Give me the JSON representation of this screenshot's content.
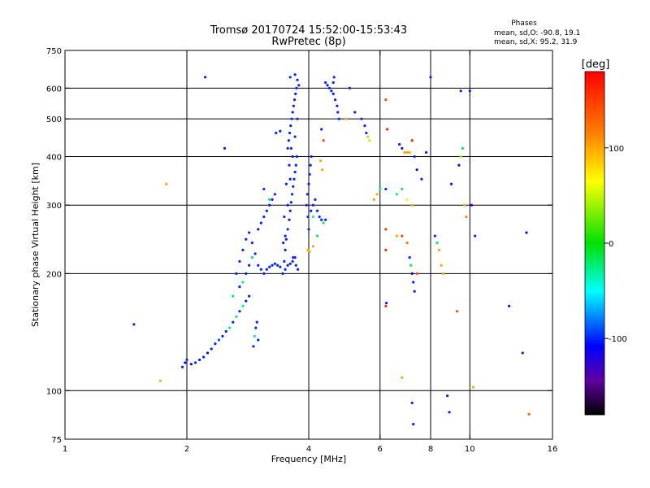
{
  "chart_data": {
    "type": "scatter",
    "title": "Tromsø 20170724 15:52:00-15:53:43",
    "subtitle": "RwPretec (8p)",
    "stats": {
      "heading": "Phases",
      "line1": "mean, sd,O: -90.8, 19.1",
      "line2": "mean, sd,X:  95.2, 31.9"
    },
    "xlabel": "Frequency [MHz]",
    "ylabel": "Stationary phase Virtual Height [km]",
    "x_scale": "log2",
    "y_scale": "log",
    "xlim": [
      1,
      16
    ],
    "ylim": [
      75,
      750
    ],
    "x_ticks": [
      1,
      2,
      4,
      6,
      8,
      10,
      16
    ],
    "y_ticks": [
      75,
      100,
      200,
      300,
      400,
      500,
      600,
      750
    ],
    "x_gridlines": [
      2,
      4,
      6,
      8,
      10
    ],
    "y_gridlines": [
      100,
      200,
      300,
      400,
      500,
      600
    ],
    "grid": true,
    "colorbar": {
      "label": "[deg]",
      "range": [
        -180,
        180
      ],
      "ticks": [
        100,
        0,
        -100
      ]
    },
    "point_size": 1.6,
    "points": [
      [
        1.48,
        148,
        -100
      ],
      [
        1.72,
        106,
        100
      ],
      [
        1.78,
        340,
        100
      ],
      [
        2.22,
        640,
        -100
      ],
      [
        1.95,
        115,
        -100
      ],
      [
        1.98,
        118,
        -110
      ],
      [
        2.0,
        120,
        -100
      ],
      [
        2.05,
        117,
        -120
      ],
      [
        2.1,
        118,
        -100
      ],
      [
        2.15,
        120,
        -105
      ],
      [
        2.2,
        122,
        -100
      ],
      [
        2.25,
        125,
        -110
      ],
      [
        2.3,
        128,
        -100
      ],
      [
        2.35,
        132,
        -100
      ],
      [
        2.4,
        135,
        -90
      ],
      [
        2.45,
        138,
        -100
      ],
      [
        2.5,
        142,
        -100
      ],
      [
        2.55,
        145,
        -30
      ],
      [
        2.6,
        150,
        -100
      ],
      [
        2.65,
        155,
        -20
      ],
      [
        2.7,
        160,
        -100
      ],
      [
        2.75,
        165,
        -30
      ],
      [
        2.8,
        170,
        -100
      ],
      [
        2.85,
        175,
        -100
      ],
      [
        2.6,
        175,
        -20
      ],
      [
        2.7,
        185,
        -100
      ],
      [
        2.75,
        190,
        -30
      ],
      [
        2.8,
        200,
        -100
      ],
      [
        2.85,
        210,
        -100
      ],
      [
        2.9,
        220,
        -20
      ],
      [
        2.65,
        200,
        -100
      ],
      [
        2.7,
        215,
        -100
      ],
      [
        2.75,
        230,
        -100
      ],
      [
        2.8,
        245,
        -100
      ],
      [
        2.85,
        255,
        -100
      ],
      [
        2.9,
        240,
        -100
      ],
      [
        2.95,
        225,
        -100
      ],
      [
        3.0,
        210,
        -100
      ],
      [
        3.05,
        205,
        -100
      ],
      [
        3.1,
        200,
        -100
      ],
      [
        3.15,
        205,
        -100
      ],
      [
        3.2,
        208,
        -100
      ],
      [
        3.25,
        210,
        -100
      ],
      [
        3.3,
        212,
        -100
      ],
      [
        3.35,
        210,
        -100
      ],
      [
        3.4,
        208,
        -100
      ],
      [
        3.0,
        260,
        -110
      ],
      [
        3.05,
        270,
        -100
      ],
      [
        3.1,
        280,
        -100
      ],
      [
        3.15,
        290,
        -100
      ],
      [
        3.2,
        300,
        -100
      ],
      [
        3.25,
        310,
        -100
      ],
      [
        3.3,
        320,
        -100
      ],
      [
        3.1,
        330,
        -100
      ],
      [
        3.2,
        310,
        -20
      ],
      [
        2.92,
        130,
        -100
      ],
      [
        2.94,
        138,
        -30
      ],
      [
        2.96,
        145,
        -100
      ],
      [
        2.98,
        150,
        -100
      ],
      [
        3.0,
        135,
        -100
      ],
      [
        2.48,
        420,
        -100
      ],
      [
        3.32,
        460,
        -100
      ],
      [
        3.4,
        465,
        -100
      ],
      [
        3.45,
        200,
        -100
      ],
      [
        3.48,
        215,
        -100
      ],
      [
        3.5,
        230,
        -100
      ],
      [
        3.52,
        245,
        -100
      ],
      [
        3.55,
        260,
        -100
      ],
      [
        3.58,
        275,
        -100
      ],
      [
        3.6,
        290,
        -100
      ],
      [
        3.62,
        305,
        -100
      ],
      [
        3.64,
        320,
        -100
      ],
      [
        3.66,
        335,
        -100
      ],
      [
        3.68,
        350,
        -100
      ],
      [
        3.7,
        365,
        -100
      ],
      [
        3.72,
        380,
        -100
      ],
      [
        3.74,
        400,
        -100
      ],
      [
        3.55,
        420,
        -100
      ],
      [
        3.57,
        440,
        -100
      ],
      [
        3.59,
        460,
        -100
      ],
      [
        3.61,
        480,
        -100
      ],
      [
        3.63,
        500,
        -100
      ],
      [
        3.65,
        520,
        -100
      ],
      [
        3.67,
        540,
        -100
      ],
      [
        3.69,
        560,
        -100
      ],
      [
        3.71,
        580,
        -100
      ],
      [
        3.73,
        600,
        -100
      ],
      [
        3.6,
        640,
        -100
      ],
      [
        3.7,
        650,
        -100
      ],
      [
        3.75,
        630,
        -100
      ],
      [
        3.78,
        610,
        -100
      ],
      [
        3.5,
        250,
        -100
      ],
      [
        3.55,
        300,
        -100
      ],
      [
        3.6,
        350,
        -100
      ],
      [
        3.65,
        400,
        -100
      ],
      [
        3.7,
        450,
        -100
      ],
      [
        3.75,
        500,
        -100
      ],
      [
        3.62,
        420,
        -100
      ],
      [
        3.58,
        380,
        -100
      ],
      [
        3.52,
        340,
        -100
      ],
      [
        3.48,
        280,
        -100
      ],
      [
        3.46,
        240,
        -100
      ],
      [
        3.66,
        220,
        -100
      ],
      [
        3.72,
        210,
        -100
      ],
      [
        3.76,
        205,
        -100
      ],
      [
        3.5,
        205,
        -100
      ],
      [
        3.55,
        210,
        -100
      ],
      [
        3.6,
        212,
        -100
      ],
      [
        3.65,
        215,
        -100
      ],
      [
        3.7,
        220,
        -100
      ],
      [
        3.95,
        300,
        -100
      ],
      [
        3.97,
        320,
        -100
      ],
      [
        4.0,
        340,
        -100
      ],
      [
        4.02,
        360,
        -100
      ],
      [
        4.04,
        380,
        -100
      ],
      [
        4.06,
        400,
        -100
      ],
      [
        3.98,
        280,
        -100
      ],
      [
        4.05,
        290,
        -100
      ],
      [
        4.1,
        300,
        -100
      ],
      [
        4.15,
        310,
        -100
      ],
      [
        4.2,
        290,
        -100
      ],
      [
        4.25,
        280,
        -100
      ],
      [
        4.3,
        275,
        -100
      ],
      [
        4.35,
        270,
        -20
      ],
      [
        4.4,
        275,
        -100
      ],
      [
        4.1,
        280,
        -30
      ],
      [
        4.0,
        260,
        -100
      ],
      [
        3.98,
        230,
        100
      ],
      [
        4.02,
        228,
        100
      ],
      [
        4.1,
        235,
        100
      ],
      [
        4.2,
        250,
        -20
      ],
      [
        4.4,
        620,
        -100
      ],
      [
        4.45,
        610,
        -100
      ],
      [
        4.5,
        600,
        -100
      ],
      [
        4.55,
        590,
        -100
      ],
      [
        4.6,
        580,
        -100
      ],
      [
        4.65,
        560,
        -100
      ],
      [
        4.7,
        540,
        -100
      ],
      [
        4.72,
        520,
        -100
      ],
      [
        4.75,
        500,
        -100
      ],
      [
        4.6,
        620,
        -100
      ],
      [
        4.62,
        640,
        -100
      ],
      [
        4.3,
        470,
        -100
      ],
      [
        4.35,
        440,
        140
      ],
      [
        4.28,
        390,
        100
      ],
      [
        4.32,
        370,
        100
      ],
      [
        4.95,
        500,
        100
      ],
      [
        5.05,
        600,
        -100
      ],
      [
        5.2,
        520,
        -100
      ],
      [
        5.4,
        500,
        -100
      ],
      [
        5.5,
        480,
        -100
      ],
      [
        5.55,
        460,
        -100
      ],
      [
        5.6,
        450,
        40
      ],
      [
        5.65,
        440,
        50
      ],
      [
        5.8,
        310,
        100
      ],
      [
        5.9,
        320,
        100
      ],
      [
        6.0,
        330,
        -30
      ],
      [
        6.2,
        330,
        -100
      ],
      [
        6.2,
        560,
        140
      ],
      [
        6.25,
        470,
        160
      ],
      [
        6.7,
        430,
        -100
      ],
      [
        6.8,
        420,
        -130
      ],
      [
        6.9,
        410,
        100
      ],
      [
        7.0,
        410,
        100
      ],
      [
        7.1,
        410,
        100
      ],
      [
        7.2,
        440,
        160
      ],
      [
        7.3,
        400,
        -100
      ],
      [
        7.4,
        370,
        -120
      ],
      [
        6.6,
        320,
        -30
      ],
      [
        6.8,
        330,
        -20
      ],
      [
        7.0,
        310,
        60
      ],
      [
        7.2,
        300,
        100
      ],
      [
        7.6,
        350,
        -100
      ],
      [
        7.8,
        410,
        -100
      ],
      [
        6.2,
        260,
        160
      ],
      [
        6.2,
        230,
        160
      ],
      [
        6.6,
        250,
        100
      ],
      [
        6.8,
        250,
        150
      ],
      [
        7.0,
        240,
        120
      ],
      [
        7.1,
        220,
        -100
      ],
      [
        7.15,
        210,
        -20
      ],
      [
        7.2,
        200,
        -110
      ],
      [
        7.25,
        190,
        -100
      ],
      [
        7.3,
        180,
        -100
      ],
      [
        7.4,
        200,
        140
      ],
      [
        6.2,
        165,
        160
      ],
      [
        6.22,
        168,
        -100
      ],
      [
        6.8,
        108,
        100
      ],
      [
        7.2,
        93,
        -100
      ],
      [
        7.25,
        82,
        -100
      ],
      [
        8.0,
        640,
        -100
      ],
      [
        8.2,
        250,
        -100
      ],
      [
        8.3,
        240,
        -20
      ],
      [
        8.4,
        230,
        100
      ],
      [
        8.5,
        210,
        100
      ],
      [
        8.6,
        200,
        100
      ],
      [
        9.0,
        340,
        -100
      ],
      [
        9.4,
        380,
        -110
      ],
      [
        9.5,
        400,
        40
      ],
      [
        9.6,
        420,
        -20
      ],
      [
        9.7,
        300,
        100
      ],
      [
        9.8,
        280,
        110
      ],
      [
        9.5,
        590,
        -100
      ],
      [
        9.3,
        160,
        140
      ],
      [
        8.8,
        97,
        -100
      ],
      [
        8.9,
        88,
        -100
      ],
      [
        10.0,
        590,
        -100
      ],
      [
        10.1,
        300,
        -120
      ],
      [
        10.3,
        250,
        -100
      ],
      [
        10.2,
        102,
        100
      ],
      [
        12.5,
        165,
        -100
      ],
      [
        13.5,
        125,
        -100
      ],
      [
        13.8,
        255,
        -120
      ],
      [
        14.0,
        87,
        130
      ]
    ]
  }
}
